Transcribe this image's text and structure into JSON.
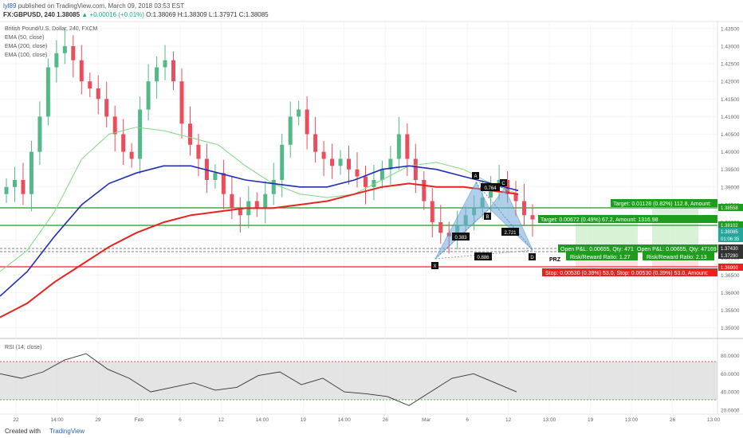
{
  "header": {
    "user": "lyl89",
    "published": "published on TradingView.com, March 09, 2018 03:53 EST",
    "symbol_line": "FX:GBPUSD, 240 1.38085",
    "change": "▲ +0.00016 (+0.01%)",
    "ohlc": "O:1.38069 H:1.38309 L:1.37971 C:1.38085"
  },
  "legend": {
    "title": "British Pound/U.S. Dollar, 240, FXCM",
    "items": [
      "EMA (50, close)",
      "EMA (200, close)",
      "EMA (100, close)"
    ]
  },
  "rsi_label": "RSI (14, close)",
  "footer": {
    "created_with": "Created with",
    "brand": "TradingView"
  },
  "colors": {
    "up": "#26a69a",
    "candle_up": "#53b987",
    "candle_down": "#eb4d5c",
    "ema50": "#7fd87f",
    "ema100": "#1f2fb5",
    "ema200": "#e8231f",
    "pattern": "#6fa8dc",
    "target": "#1e9c1e",
    "stop": "#e8231f",
    "rsi": "#333333"
  },
  "price_axis": {
    "labels": [
      "1.43500",
      "1.43000",
      "1.42500",
      "1.42000",
      "1.41500",
      "1.41000",
      "1.40500",
      "1.40000",
      "1.39500",
      "1.39000",
      "1.38500",
      "1.38000",
      "1.37500",
      "1.37000",
      "1.36500",
      "1.36000",
      "1.35500",
      "1.35000"
    ],
    "tags": [
      "1.38558",
      "1.38102",
      "1.38085",
      "01:06:35",
      "1.37430",
      "1.37290",
      "1.36900"
    ]
  },
  "rsi_axis": {
    "labels": [
      "80.0000",
      "60.0000",
      "40.0000",
      "20.0000"
    ]
  },
  "time_axis": {
    "labels": [
      "22",
      "14:00",
      "29",
      "Feb",
      "6",
      "12",
      "14:00",
      "19",
      "14:00",
      "26",
      "Mar",
      "6",
      "12",
      "13:00",
      "19",
      "13:00",
      "26",
      "13:00"
    ]
  },
  "pattern": {
    "points": [
      "X",
      "A",
      "B",
      "C",
      "D"
    ],
    "ratios": [
      "0.764",
      "0.383",
      "2.721",
      "0.886"
    ],
    "prz": "PRZ"
  },
  "positions": {
    "target1": "Target: 0.00672 (0.49%) 67.2, Amount: 1316.98",
    "target2": "Target: 0.01128 (0.82%) 112.8, Amount:",
    "open1": "Open P&L: 0.00655, Qty: 471",
    "open2": "Open P&L: 0.00655, Qty: 47169",
    "rr1": "Risk/Reward Ratio: 1.27",
    "rr2": "Risk/Reward Ratio: 2.13",
    "stop1": "Stop: 0.00530 (0.39%) 53.0, ",
    "stop2": "Stop: 0.00530 (0.39%) 53.0, Amount:"
  },
  "chart_data": {
    "type": "line",
    "title": "British Pound/U.S. Dollar, 240, FXCM",
    "ylim": [
      1.347,
      1.437
    ],
    "rsi_ylim": [
      20,
      90
    ],
    "series": [
      {
        "name": "EMA (50, close)",
        "values": [
          1.366,
          1.372,
          1.383,
          1.398,
          1.405,
          1.407,
          1.406,
          1.404,
          1.402,
          1.396,
          1.391,
          1.388,
          1.387,
          1.388,
          1.392,
          1.396,
          1.397,
          1.395,
          1.391,
          1.388
        ]
      },
      {
        "name": "EMA (100, close)",
        "values": [
          1.359,
          1.366,
          1.376,
          1.385,
          1.391,
          1.394,
          1.396,
          1.396,
          1.394,
          1.392,
          1.391,
          1.39,
          1.39,
          1.392,
          1.395,
          1.396,
          1.395,
          1.393,
          1.391,
          1.389
        ]
      },
      {
        "name": "EMA (200, close)",
        "values": [
          1.353,
          1.357,
          1.363,
          1.368,
          1.373,
          1.377,
          1.38,
          1.382,
          1.383,
          1.384,
          1.384,
          1.385,
          1.386,
          1.388,
          1.39,
          1.391,
          1.39,
          1.39,
          1.389,
          1.388
        ]
      },
      {
        "name": "RSI (14, close)",
        "values": [
          60,
          55,
          62,
          75,
          82,
          65,
          55,
          40,
          45,
          50,
          42,
          45,
          58,
          62,
          48,
          55,
          40,
          38,
          35,
          25,
          40,
          55,
          60,
          50,
          40
        ]
      }
    ],
    "candles_close": [
      1.39,
      1.392,
      1.388,
      1.4,
      1.41,
      1.424,
      1.428,
      1.43,
      1.426,
      1.42,
      1.418,
      1.415,
      1.41,
      1.405,
      1.4,
      1.398,
      1.412,
      1.42,
      1.424,
      1.426,
      1.42,
      1.408,
      1.402,
      1.398,
      1.392,
      1.394,
      1.388,
      1.384,
      1.382,
      1.386,
      1.384,
      1.388,
      1.392,
      1.402,
      1.41,
      1.412,
      1.405,
      1.4,
      1.398,
      1.396,
      1.398,
      1.395,
      1.393,
      1.39,
      1.392,
      1.395,
      1.398,
      1.405,
      1.398,
      1.392,
      1.386,
      1.38,
      1.377,
      1.376,
      1.379,
      1.382,
      1.384,
      1.387,
      1.39,
      1.392,
      1.388,
      1.386,
      1.382,
      1.3808
    ],
    "levels": {
      "target2": 1.38558,
      "target1": 1.38102,
      "entry": 1.3743,
      "entry2": 1.3729,
      "stop": 1.369
    }
  }
}
